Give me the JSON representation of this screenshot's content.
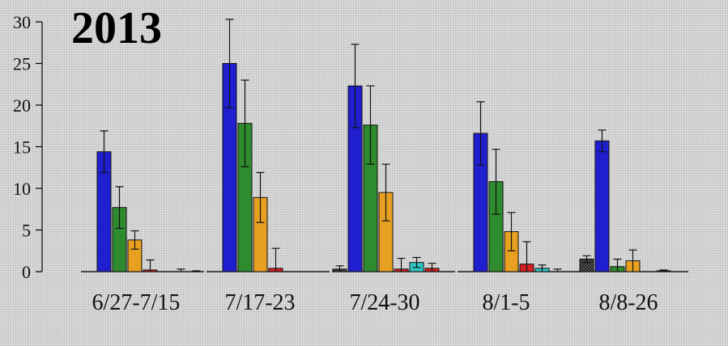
{
  "chart_data": {
    "type": "bar",
    "title": "2013",
    "xlabel": "",
    "ylabel": "",
    "ylim": [
      0,
      30
    ],
    "yticks": [
      0,
      5,
      10,
      15,
      20,
      25,
      30
    ],
    "grid": false,
    "legend": "none",
    "categories": [
      "6/27-7/15",
      "7/17-23",
      "7/24-30",
      "8/1-5",
      "8/8-26"
    ],
    "series": [
      {
        "color": "#222222",
        "pattern": "checker",
        "values": [
          0,
          0,
          0.3,
          0,
          1.5
        ],
        "errors": [
          0,
          0,
          0.4,
          0,
          0.4
        ]
      },
      {
        "color": "#1f1fd0",
        "values": [
          14.4,
          25.0,
          22.3,
          16.6,
          15.7
        ],
        "errors": [
          2.5,
          5.3,
          5.0,
          3.8,
          1.3
        ]
      },
      {
        "color": "#2e8b2e",
        "values": [
          7.7,
          17.8,
          17.6,
          10.8,
          0.6
        ],
        "errors": [
          2.5,
          5.2,
          4.7,
          3.9,
          0.9
        ]
      },
      {
        "color": "#e8a020",
        "values": [
          3.8,
          8.9,
          9.5,
          4.8,
          1.3
        ],
        "errors": [
          1.1,
          3.0,
          3.4,
          2.3,
          1.3
        ]
      },
      {
        "color": "#d42020",
        "values": [
          0.2,
          0.4,
          0.3,
          0.9,
          0
        ],
        "errors": [
          1.2,
          2.4,
          1.3,
          2.7,
          0
        ]
      },
      {
        "color": "#30c8c8",
        "values": [
          0,
          0,
          1.1,
          0.4,
          0.1
        ],
        "errors": [
          0,
          0,
          0.6,
          0.4,
          0.1
        ]
      },
      {
        "color": "#d42020",
        "values": [
          0,
          0,
          0.4,
          0,
          0
        ],
        "errors": [
          0.3,
          0,
          0.6,
          0.3,
          0
        ]
      },
      {
        "color": "#222222",
        "values": [
          0,
          0,
          0,
          0,
          0
        ],
        "errors": [
          0.1,
          0,
          0,
          0,
          0
        ]
      }
    ]
  }
}
